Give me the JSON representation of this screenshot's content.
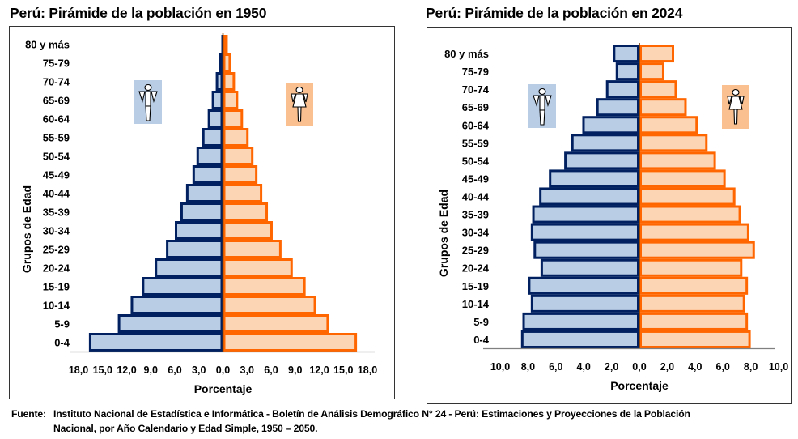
{
  "chart_data": [
    {
      "type": "bar",
      "orientation": "horizontal-population-pyramid",
      "title": "Perú: Pirámide de la población en 1950",
      "xlabel": "Porcentaje",
      "ylabel": "Grupos de Edad",
      "categories": [
        "0-4",
        "5-9",
        "10-14",
        "15-19",
        "20-24",
        "25-29",
        "30-34",
        "35-39",
        "40-44",
        "45-49",
        "50-54",
        "55-59",
        "60-64",
        "65-69",
        "70-74",
        "75-79",
        "80 y más"
      ],
      "xlim": [
        -18,
        18
      ],
      "xticks": [
        -18,
        -15,
        -12,
        -9,
        -6,
        -3,
        0,
        3,
        6,
        9,
        12,
        15,
        18
      ],
      "xtick_labels": [
        "18,0",
        "15,0",
        "12,0",
        "9,0",
        "6,0",
        "3,0",
        "0,0",
        "3,0",
        "6,0",
        "9,0",
        "12,0",
        "15,0",
        "18,0"
      ],
      "series": [
        {
          "name": "Hombres",
          "side": "left",
          "color_fill": "#b9cde5",
          "color_stroke": "#002060",
          "values": [
            16.7,
            13.1,
            11.5,
            10.1,
            8.5,
            7.1,
            6.0,
            5.3,
            4.6,
            3.8,
            3.3,
            2.6,
            1.9,
            1.4,
            0.9,
            0.5,
            0.2
          ]
        },
        {
          "name": "Mujeres",
          "side": "right",
          "color_fill": "#fcd5b5",
          "color_stroke": "#ff6600",
          "values": [
            16.7,
            13.2,
            11.6,
            10.3,
            8.7,
            7.3,
            6.2,
            5.6,
            4.9,
            4.3,
            3.8,
            3.2,
            2.5,
            1.9,
            1.5,
            1.0,
            0.6
          ]
        }
      ],
      "legend": "icons: male figure left, female figure right"
    },
    {
      "type": "bar",
      "orientation": "horizontal-population-pyramid",
      "title": "Perú: Pirámide de la población en 2024",
      "xlabel": "Porcentaje",
      "ylabel": "Grupos de Edad",
      "categories": [
        "0-4",
        "5-9",
        "10-14",
        "15-19",
        "20-24",
        "25-29",
        "30-34",
        "35-39",
        "40-44",
        "45-49",
        "50-54",
        "55-59",
        "60-64",
        "65-69",
        "70-74",
        "75-79",
        "80 y más"
      ],
      "xlim": [
        -10,
        10
      ],
      "xticks": [
        -10,
        -8,
        -6,
        -4,
        -2,
        0,
        2,
        4,
        6,
        8,
        10
      ],
      "xtick_labels": [
        "10,0",
        "8,0",
        "6,0",
        "4,0",
        "2,0",
        "0,0",
        "2,0",
        "4,0",
        "6,0",
        "8,0",
        "10,0"
      ],
      "series": [
        {
          "name": "Hombres",
          "side": "left",
          "color_fill": "#b9cde5",
          "color_stroke": "#002060",
          "values": [
            8.5,
            8.4,
            7.8,
            8.0,
            7.1,
            7.6,
            7.8,
            7.7,
            7.2,
            6.5,
            5.4,
            4.9,
            4.1,
            3.1,
            2.4,
            1.7,
            1.9
          ]
        },
        {
          "name": "Mujeres",
          "side": "right",
          "color_fill": "#fcd5b5",
          "color_stroke": "#ff6600",
          "values": [
            8.0,
            7.8,
            7.6,
            7.8,
            7.4,
            8.3,
            7.9,
            7.3,
            6.9,
            6.2,
            5.5,
            4.9,
            4.2,
            3.4,
            2.7,
            1.8,
            2.5
          ]
        }
      ],
      "legend": "icons: male figure left, female figure right"
    }
  ],
  "source": {
    "label": "Fuente:",
    "line1": "Instituto Nacional de Estadística e Informática - Boletín de Análisis Demográfico N° 24 -  Perú: Estimaciones y Proyecciones de la Población",
    "line2": "Nacional, por Año Calendario y Edad Simple, 1950 – 2050."
  },
  "colors": {
    "male_icon_bg": "#b9cde5",
    "female_icon_bg": "#fac090",
    "center_line": "#7f3f00",
    "axis": "#808080"
  }
}
